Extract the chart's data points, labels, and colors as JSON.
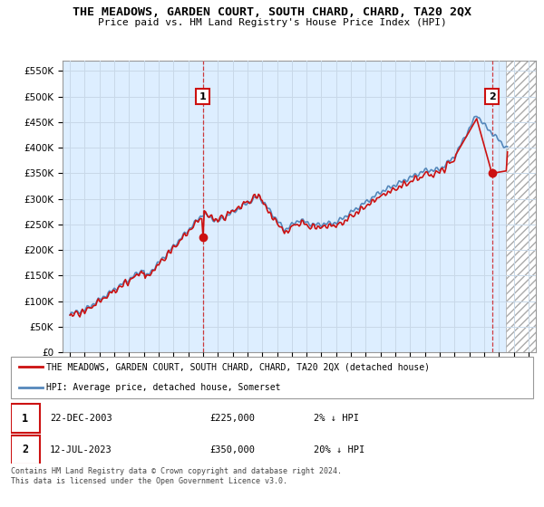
{
  "title": "THE MEADOWS, GARDEN COURT, SOUTH CHARD, CHARD, TA20 2QX",
  "subtitle": "Price paid vs. HM Land Registry's House Price Index (HPI)",
  "legend_line1": "THE MEADOWS, GARDEN COURT, SOUTH CHARD, CHARD, TA20 2QX (detached house)",
  "legend_line2": "HPI: Average price, detached house, Somerset",
  "point1_date": "22-DEC-2003",
  "point1_price": "£225,000",
  "point1_hpi": "2% ↓ HPI",
  "point1_x": 2003.98,
  "point1_y": 225000,
  "point2_date": "12-JUL-2023",
  "point2_price": "£350,000",
  "point2_hpi": "20% ↓ HPI",
  "point2_x": 2023.53,
  "point2_y": 350000,
  "xlim": [
    1994.5,
    2026.5
  ],
  "ylim": [
    0,
    570000
  ],
  "yticks": [
    0,
    50000,
    100000,
    150000,
    200000,
    250000,
    300000,
    350000,
    400000,
    450000,
    500000,
    550000
  ],
  "xticks": [
    1995,
    1996,
    1997,
    1998,
    1999,
    2000,
    2001,
    2002,
    2003,
    2004,
    2005,
    2006,
    2007,
    2008,
    2009,
    2010,
    2011,
    2012,
    2013,
    2014,
    2015,
    2016,
    2017,
    2018,
    2019,
    2020,
    2021,
    2022,
    2023,
    2024,
    2025,
    2026
  ],
  "hpi_color": "#5588bb",
  "property_color": "#cc1111",
  "grid_color": "#c8d8e8",
  "bg_color": "#ddeeff",
  "hatch_start": 2024.5,
  "footnote": "Contains HM Land Registry data © Crown copyright and database right 2024.\nThis data is licensed under the Open Government Licence v3.0."
}
